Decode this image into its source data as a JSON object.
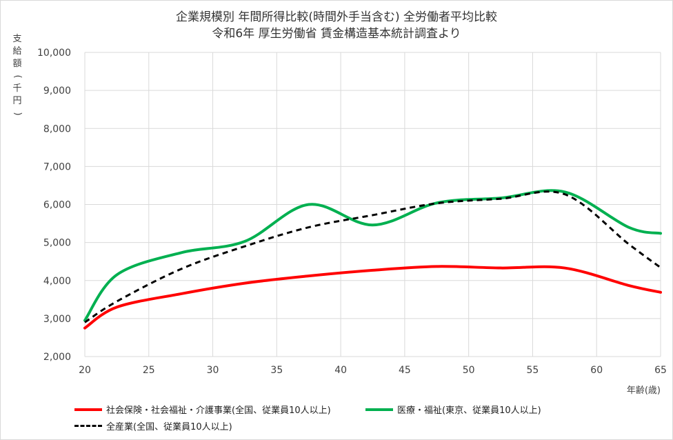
{
  "chart_data": {
    "type": "line",
    "title": "企業規模別 年間所得比較(時間外手当含む) 全労働者平均比較",
    "subtitle": "令和6年 厚生労働省 賃金構造基本統計調査より",
    "ylabel": "支給額(千円)",
    "xlabel": "年齢(歳)",
    "xlim": [
      20,
      65
    ],
    "ylim": [
      2000,
      10000
    ],
    "x_ticks": [
      "20",
      "25",
      "30",
      "35",
      "40",
      "45",
      "50",
      "55",
      "60",
      "65"
    ],
    "y_ticks": [
      "2,000",
      "3,000",
      "4,000",
      "5,000",
      "6,000",
      "7,000",
      "8,000",
      "9,000",
      "10,000"
    ],
    "grid": true,
    "legend_position": "bottom",
    "series": [
      {
        "name": "社会保険・社会福祉・介護事業(全国、従業員10人以上)",
        "color": "#ff0000",
        "style": "solid",
        "x": [
          20,
          22.5,
          27.5,
          32.5,
          37.5,
          42.5,
          47.5,
          52.5,
          57.5,
          62.5,
          65
        ],
        "values": [
          2750,
          3300,
          3650,
          3930,
          4120,
          4270,
          4370,
          4330,
          4330,
          3870,
          3690
        ]
      },
      {
        "name": "医療・福祉(東京、従業員10人以上)",
        "color": "#00b050",
        "style": "solid",
        "x": [
          20,
          22.5,
          27.5,
          32.5,
          37.5,
          42.5,
          47.5,
          52.5,
          57.5,
          62.5,
          65
        ],
        "values": [
          2950,
          4150,
          4730,
          5030,
          6000,
          5460,
          6040,
          6170,
          6330,
          5400,
          5240
        ]
      },
      {
        "name": "全産業(全国、従業員10人以上)",
        "color": "#000000",
        "style": "dashed",
        "x": [
          20,
          22.5,
          27.5,
          32.5,
          37.5,
          42.5,
          47.5,
          52.5,
          57.5,
          62.5,
          65
        ],
        "values": [
          2900,
          3450,
          4300,
          4900,
          5400,
          5720,
          6030,
          6150,
          6270,
          4960,
          4340
        ]
      }
    ]
  }
}
